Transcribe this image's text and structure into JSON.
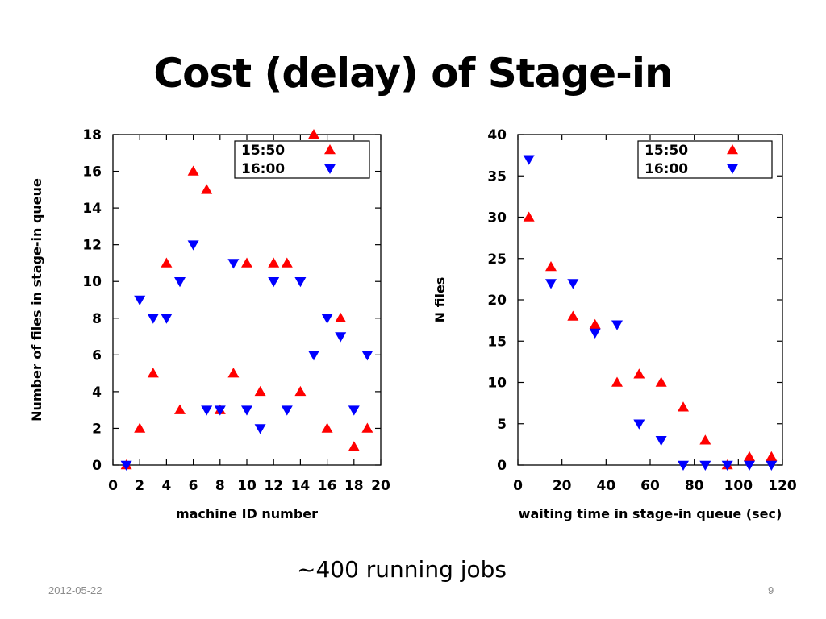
{
  "slide": {
    "title": "Cost (delay) of Stage-in",
    "caption": "~400 running jobs",
    "date": "2012-05-22",
    "page_number": "9"
  },
  "colors": {
    "up": "#ff0000",
    "down": "#0000ff",
    "axis": "#000000"
  },
  "chart_data": [
    {
      "type": "scatter",
      "xlabel": "machine ID number",
      "ylabel": "Number of files in stage-in queue",
      "xlim": [
        0,
        20
      ],
      "ylim": [
        0,
        18
      ],
      "xticks": [
        0,
        2,
        4,
        6,
        8,
        10,
        12,
        14,
        16,
        18,
        20
      ],
      "yticks": [
        0,
        2,
        4,
        6,
        8,
        10,
        12,
        14,
        16,
        18
      ],
      "legend_position": "top-right",
      "series": [
        {
          "name": "15:50",
          "marker": "triangle-up",
          "color": "#ff0000",
          "points": [
            [
              1,
              0
            ],
            [
              2,
              2
            ],
            [
              3,
              5
            ],
            [
              4,
              11
            ],
            [
              5,
              3
            ],
            [
              6,
              16
            ],
            [
              7,
              15
            ],
            [
              8,
              3
            ],
            [
              9,
              5
            ],
            [
              10,
              11
            ],
            [
              11,
              4
            ],
            [
              12,
              11
            ],
            [
              13,
              11
            ],
            [
              14,
              4
            ],
            [
              15,
              18
            ],
            [
              16,
              2
            ],
            [
              17,
              8
            ],
            [
              18,
              1
            ],
            [
              19,
              2
            ]
          ]
        },
        {
          "name": "16:00",
          "marker": "triangle-down",
          "color": "#0000ff",
          "points": [
            [
              1,
              0
            ],
            [
              2,
              9
            ],
            [
              3,
              8
            ],
            [
              4,
              8
            ],
            [
              5,
              10
            ],
            [
              6,
              12
            ],
            [
              7,
              3
            ],
            [
              8,
              3
            ],
            [
              9,
              11
            ],
            [
              10,
              3
            ],
            [
              11,
              2
            ],
            [
              12,
              10
            ],
            [
              13,
              3
            ],
            [
              14,
              10
            ],
            [
              15,
              6
            ],
            [
              16,
              8
            ],
            [
              17,
              7
            ],
            [
              18,
              3
            ],
            [
              19,
              6
            ]
          ]
        }
      ]
    },
    {
      "type": "scatter",
      "xlabel": "waiting time in stage-in queue (sec)",
      "ylabel": "N files",
      "xlim": [
        0,
        120
      ],
      "ylim": [
        0,
        40
      ],
      "xticks": [
        0,
        20,
        40,
        60,
        80,
        100,
        120
      ],
      "yticks": [
        0,
        5,
        10,
        15,
        20,
        25,
        30,
        35,
        40
      ],
      "legend_position": "top-right",
      "series": [
        {
          "name": "15:50",
          "marker": "triangle-up",
          "color": "#ff0000",
          "points": [
            [
              5,
              30
            ],
            [
              15,
              24
            ],
            [
              25,
              18
            ],
            [
              35,
              17
            ],
            [
              45,
              10
            ],
            [
              55,
              11
            ],
            [
              65,
              10
            ],
            [
              75,
              7
            ],
            [
              85,
              3
            ],
            [
              95,
              0
            ],
            [
              105,
              1
            ],
            [
              115,
              1
            ]
          ]
        },
        {
          "name": "16:00",
          "marker": "triangle-down",
          "color": "#0000ff",
          "points": [
            [
              5,
              37
            ],
            [
              15,
              22
            ],
            [
              25,
              22
            ],
            [
              35,
              16
            ],
            [
              45,
              17
            ],
            [
              55,
              5
            ],
            [
              65,
              3
            ],
            [
              75,
              0
            ],
            [
              85,
              0
            ],
            [
              95,
              0
            ],
            [
              105,
              0
            ],
            [
              115,
              0
            ]
          ]
        }
      ]
    }
  ]
}
